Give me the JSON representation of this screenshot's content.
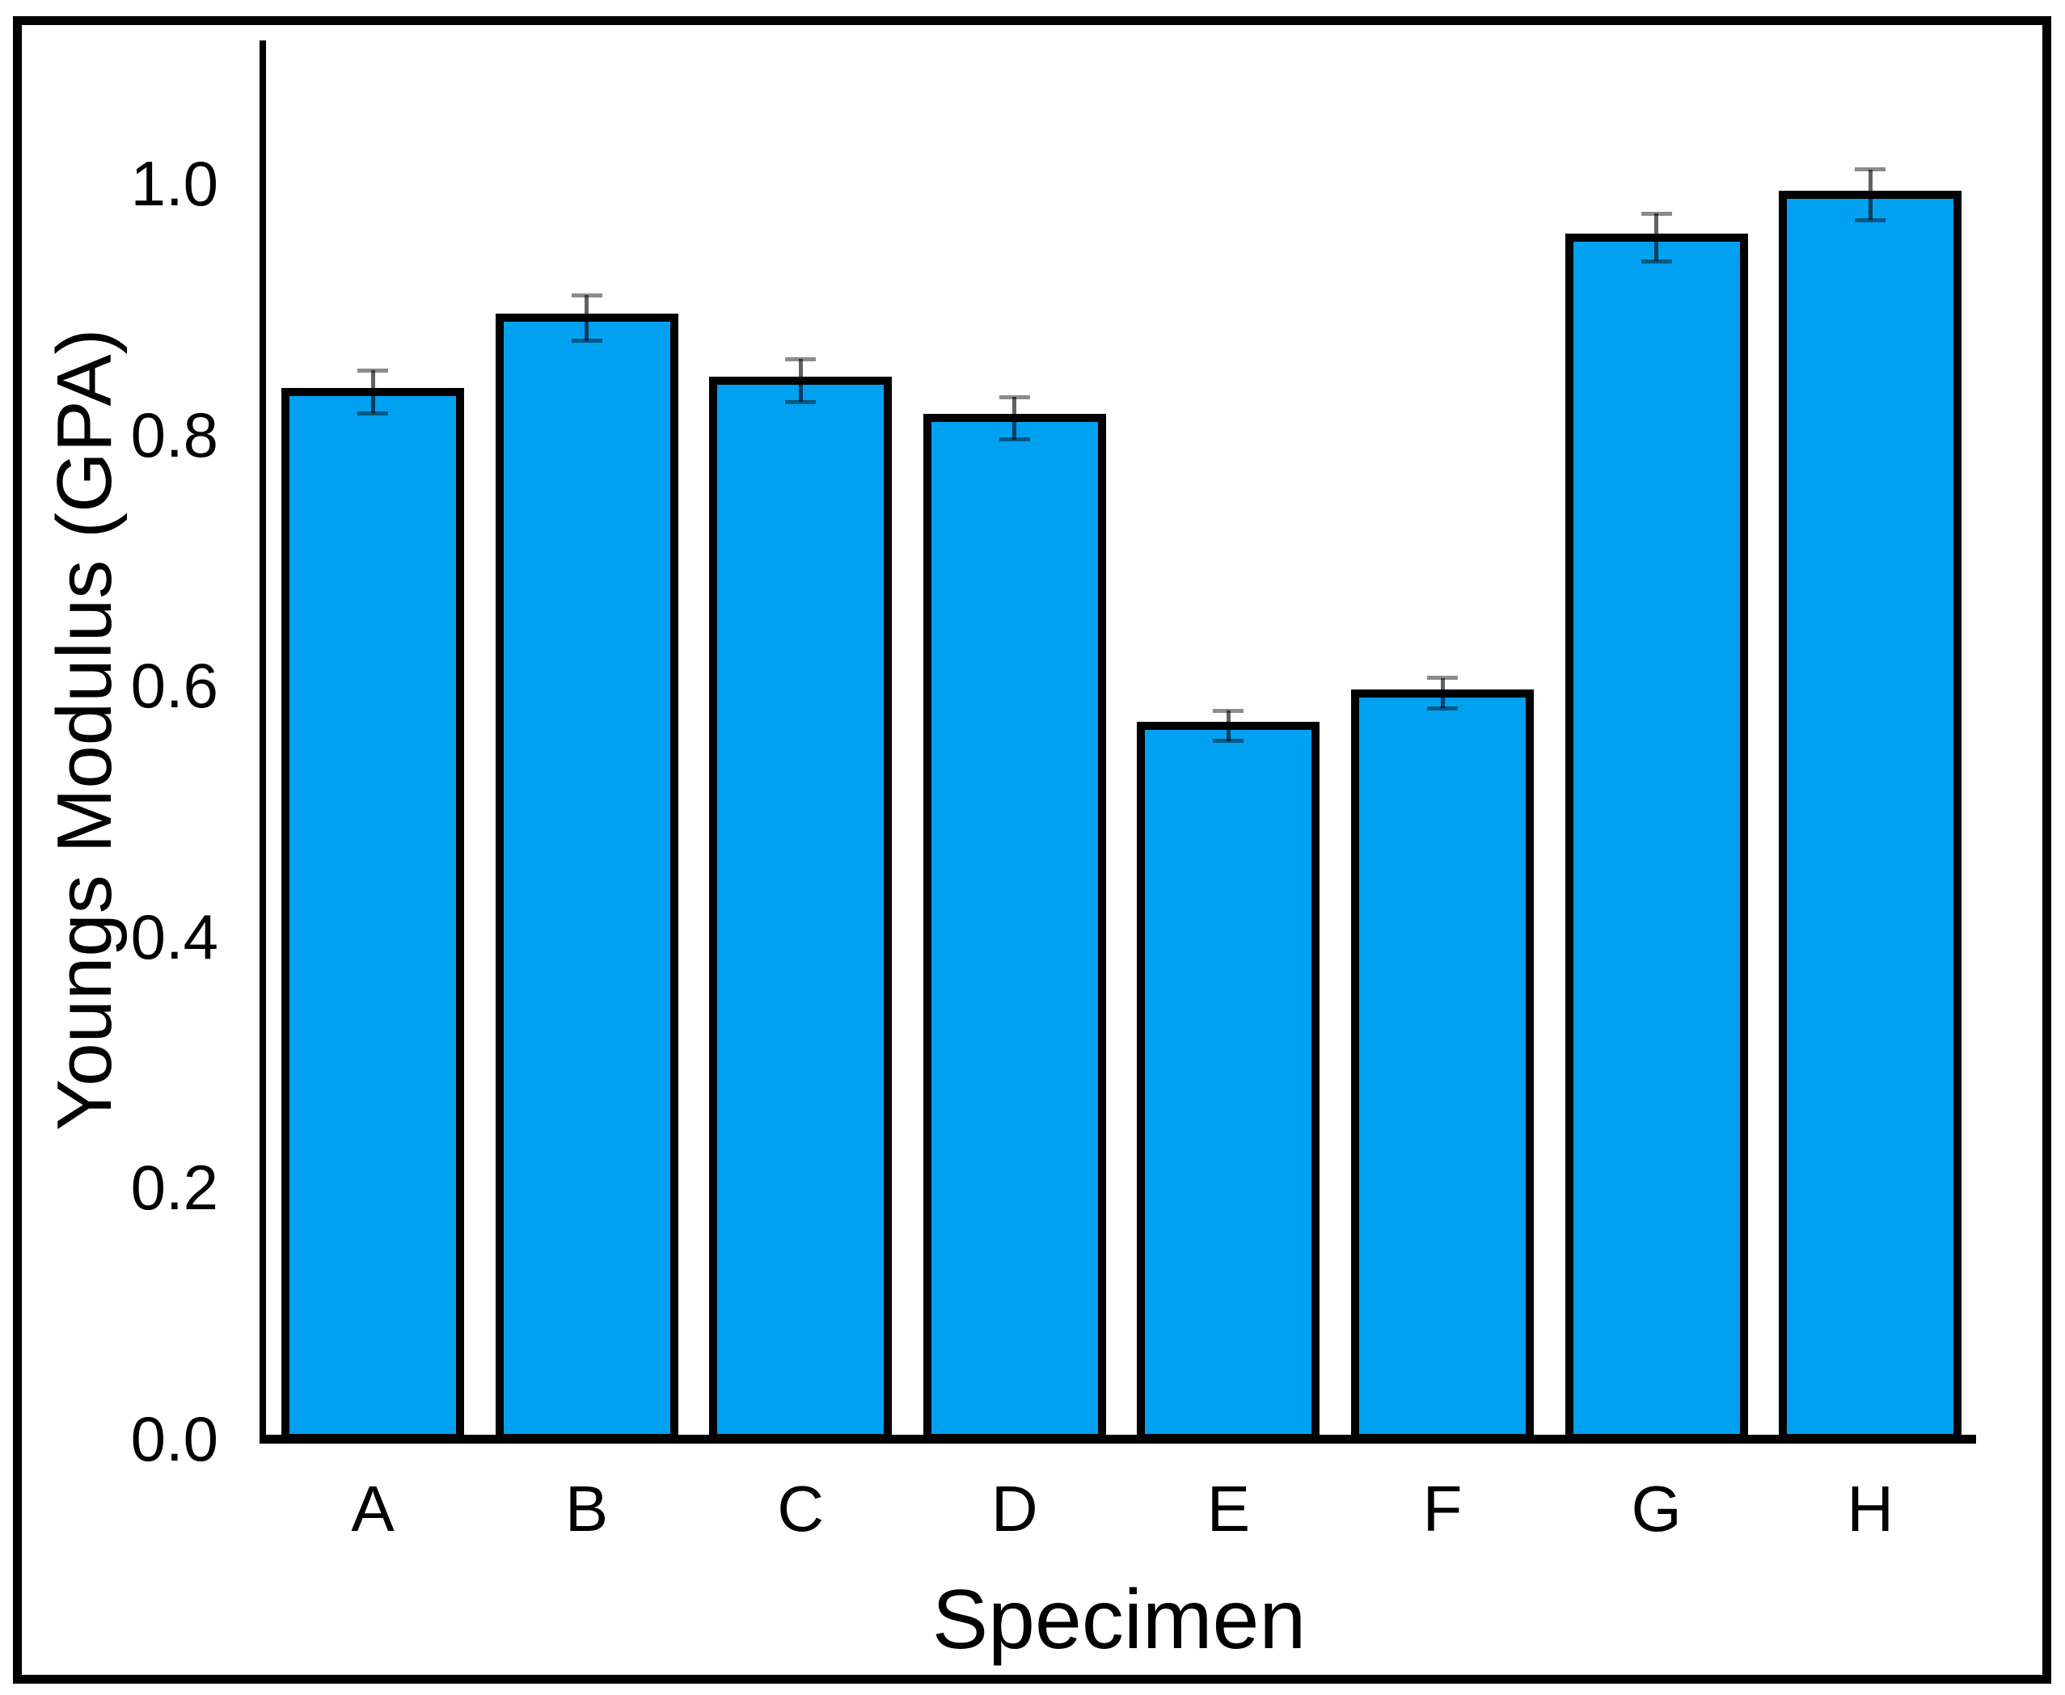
{
  "chart_data": {
    "type": "bar",
    "title": "",
    "xlabel": "Specimen",
    "ylabel": "Youngs Modulus (GPA)",
    "categories": [
      "A",
      "B",
      "C",
      "D",
      "E",
      "F",
      "G",
      "H"
    ],
    "values": [
      0.834,
      0.893,
      0.843,
      0.813,
      0.568,
      0.594,
      0.957,
      0.991
    ],
    "error_bars": [
      0.017,
      0.018,
      0.017,
      0.017,
      0.012,
      0.012,
      0.019,
      0.02
    ],
    "y_tick_labels": [
      "0.0",
      "0.2",
      "0.4",
      "0.6",
      "0.8",
      "1.0"
    ],
    "y_tick_values": [
      0.0,
      0.2,
      0.4,
      0.6,
      0.8,
      1.0
    ],
    "ylim": [
      0,
      1.114
    ],
    "grid": false,
    "legend": null,
    "bar_color": "#00A1F1",
    "bar_border_color": "#000000",
    "error_line_color": "rgba(0,0,0,0.62)",
    "error_cap_color": "rgba(0,0,0,0.45)",
    "axis_color": "#000000",
    "frame_color": "#000000",
    "background_color": "#ffffff"
  }
}
